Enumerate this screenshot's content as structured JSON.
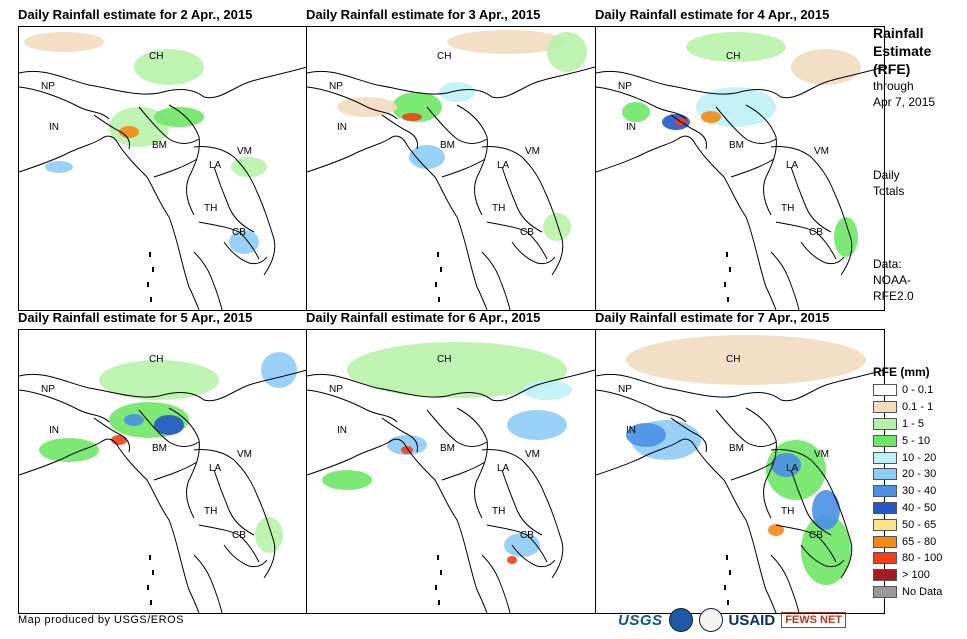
{
  "panels": [
    {
      "title": "Daily Rainfall estimate for 2 Apr., 2015"
    },
    {
      "title": "Daily Rainfall estimate for 3 Apr., 2015"
    },
    {
      "title": "Daily Rainfall estimate for 4 Apr., 2015"
    },
    {
      "title": "Daily Rainfall estimate for 5 Apr., 2015"
    },
    {
      "title": "Daily Rainfall estimate for 6 Apr., 2015"
    },
    {
      "title": "Daily Rainfall estimate for 7 Apr., 2015"
    }
  ],
  "country_labels": [
    "CH",
    "NP",
    "IN",
    "BM",
    "LA",
    "VM",
    "TH",
    "CB"
  ],
  "sidebar": {
    "title_lines": [
      "Rainfall",
      "Estimate",
      "(RFE)"
    ],
    "through": "through",
    "date": "Apr 7, 2015",
    "daily": "Daily",
    "totals": "Totals",
    "data_label": "Data:",
    "data_source_1": "NOAA-",
    "data_source_2": "RFE2.0"
  },
  "legend": {
    "title": "RFE (mm)",
    "items": [
      {
        "label": "0 - 0.1",
        "color": "#ffffff"
      },
      {
        "label": "0.1 - 1",
        "color": "#f1dcc0"
      },
      {
        "label": "1 - 5",
        "color": "#b7f2a8"
      },
      {
        "label": "5 - 10",
        "color": "#6ee765"
      },
      {
        "label": "10 - 20",
        "color": "#bff0f7"
      },
      {
        "label": "20 - 30",
        "color": "#8ecbf6"
      },
      {
        "label": "30 - 40",
        "color": "#4a90e6"
      },
      {
        "label": "40 - 50",
        "color": "#2456c8"
      },
      {
        "label": "50 - 65",
        "color": "#fbe38a"
      },
      {
        "label": "65 - 80",
        "color": "#f28a14"
      },
      {
        "label": "80 - 100",
        "color": "#f0401a"
      },
      {
        "label": "> 100",
        "color": "#a51d1d"
      },
      {
        "label": "No Data",
        "color": "#9a9a9a"
      }
    ]
  },
  "footer": {
    "credit": "Map produced by USGS/EROS",
    "logos": {
      "usgs": "USGS",
      "usaid": "USAID",
      "fews": "FEWS NET"
    }
  }
}
